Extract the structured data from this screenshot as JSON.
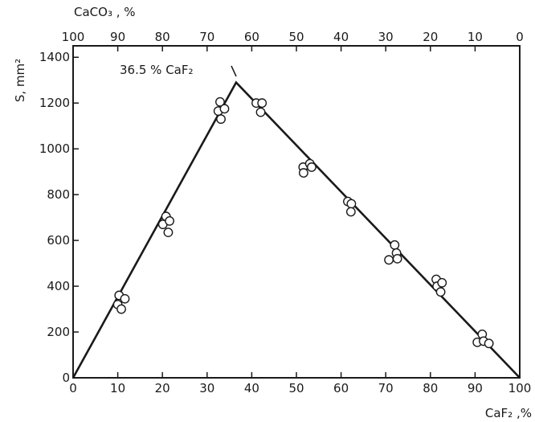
{
  "chart_data": {
    "type": "scatter",
    "xlabel_bottom": "CaF₂ ,%",
    "xlabel_top": "CaCO₃ , %",
    "ylabel": "S, mm²",
    "x_bottom_ticks": [
      "0",
      "10",
      "20",
      "30",
      "40",
      "50",
      "60",
      "70",
      "80",
      "90",
      "100"
    ],
    "x_top_ticks": [
      "100",
      "90",
      "80",
      "70",
      "60",
      "50",
      "40",
      "30",
      "20",
      "10",
      "0"
    ],
    "y_ticks": [
      "0",
      "200",
      "400",
      "600",
      "800",
      "1000",
      "1200",
      "1400"
    ],
    "xlim": [
      0,
      100
    ],
    "ylim": [
      0,
      1450
    ],
    "grid": false,
    "annotation": {
      "text": "36.5 % CaF₂",
      "x": 36.5,
      "y": 1290
    },
    "fit_line": {
      "x": [
        0,
        36.5,
        100
      ],
      "y": [
        0,
        1290,
        0
      ]
    },
    "points": [
      {
        "x": 10.3,
        "y": 360
      },
      {
        "x": 10.0,
        "y": 320
      },
      {
        "x": 10.8,
        "y": 300
      },
      {
        "x": 11.6,
        "y": 345
      },
      {
        "x": 20.1,
        "y": 670
      },
      {
        "x": 20.8,
        "y": 705
      },
      {
        "x": 21.6,
        "y": 685
      },
      {
        "x": 21.3,
        "y": 635
      },
      {
        "x": 32.5,
        "y": 1165
      },
      {
        "x": 32.9,
        "y": 1205
      },
      {
        "x": 33.9,
        "y": 1175
      },
      {
        "x": 33.1,
        "y": 1130
      },
      {
        "x": 41.0,
        "y": 1200
      },
      {
        "x": 42.3,
        "y": 1200
      },
      {
        "x": 42.0,
        "y": 1160
      },
      {
        "x": 51.5,
        "y": 920
      },
      {
        "x": 51.6,
        "y": 895
      },
      {
        "x": 53.0,
        "y": 935
      },
      {
        "x": 53.4,
        "y": 920
      },
      {
        "x": 61.5,
        "y": 770
      },
      {
        "x": 62.3,
        "y": 760
      },
      {
        "x": 62.2,
        "y": 725
      },
      {
        "x": 70.7,
        "y": 515
      },
      {
        "x": 72.0,
        "y": 580
      },
      {
        "x": 72.4,
        "y": 545
      },
      {
        "x": 72.6,
        "y": 520
      },
      {
        "x": 81.3,
        "y": 430
      },
      {
        "x": 81.5,
        "y": 400
      },
      {
        "x": 82.6,
        "y": 415
      },
      {
        "x": 82.3,
        "y": 375
      },
      {
        "x": 90.5,
        "y": 155
      },
      {
        "x": 91.6,
        "y": 190
      },
      {
        "x": 91.9,
        "y": 160
      },
      {
        "x": 93.1,
        "y": 150
      }
    ]
  }
}
